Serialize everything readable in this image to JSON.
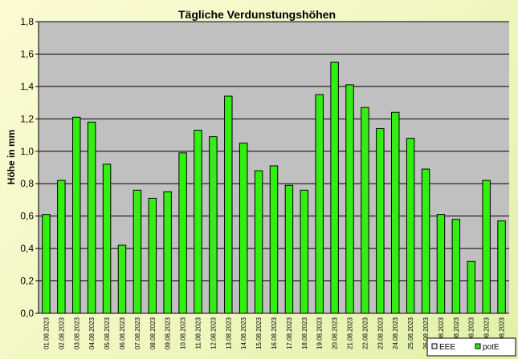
{
  "chart_data": {
    "type": "bar",
    "title": "Tägliche Verdunstungshöhen",
    "ylabel": "Höhe in mm",
    "xlabel": "",
    "ylim": [
      0,
      1.8
    ],
    "y_ticks": [
      "0,0",
      "0,2",
      "0,4",
      "0,6",
      "0,8",
      "1,0",
      "1,2",
      "1,4",
      "1,6",
      "1,8"
    ],
    "grid": true,
    "legend_position": "bottom-right",
    "categories": [
      "01.08.2023",
      "02.08.2023",
      "03.08.2023",
      "04.08.2023",
      "05.08.2023",
      "06.08.2023",
      "07.08.2023",
      "08.08.2023",
      "09.08.2023",
      "10.08.2023",
      "11.08.2023",
      "12.08.2023",
      "13.08.2023",
      "14.08.2023",
      "15.08.2023",
      "16.08.2023",
      "17.08.2023",
      "18.08.2023",
      "19.08.2023",
      "20.08.2023",
      "21.08.2023",
      "22.08.2023",
      "23.08.2023",
      "24.08.2023",
      "25.08.2023",
      "26.08.2023",
      "27.08.2023",
      "28.08.2023",
      "29.08.2023",
      "30.08.2023",
      "31.08.2023"
    ],
    "series": [
      {
        "name": "EEE",
        "color": "#f2f2f2",
        "values": [
          null,
          null,
          null,
          null,
          null,
          null,
          null,
          null,
          null,
          null,
          null,
          null,
          null,
          null,
          null,
          null,
          null,
          null,
          null,
          null,
          null,
          null,
          null,
          null,
          null,
          null,
          null,
          null,
          null,
          null,
          null
        ]
      },
      {
        "name": "potE",
        "color": "#33ee11",
        "values": [
          0.61,
          0.82,
          1.21,
          1.18,
          0.92,
          0.42,
          0.76,
          0.71,
          0.75,
          0.99,
          1.13,
          1.09,
          1.34,
          1.05,
          0.88,
          0.91,
          0.79,
          0.76,
          1.35,
          1.55,
          1.41,
          1.27,
          1.14,
          1.24,
          1.08,
          0.89,
          0.61,
          0.58,
          0.32,
          0.82,
          0.57
        ]
      }
    ],
    "colors": {
      "plot_background": "#c0c0c0",
      "gridline": "#000000",
      "bar_fill": "#33ee11",
      "bar_stroke": "#000000"
    }
  }
}
